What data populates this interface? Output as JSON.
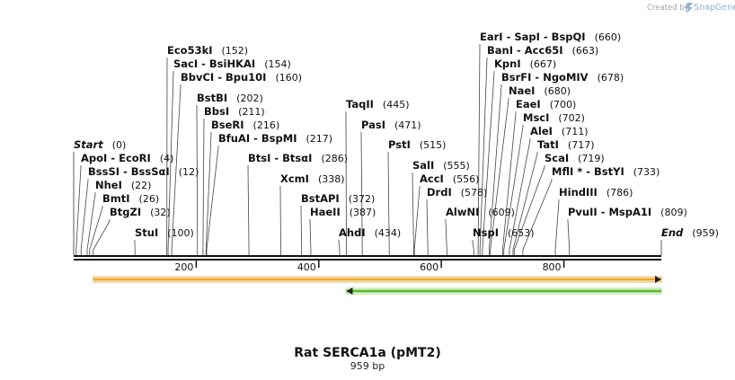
{
  "header": {
    "credit_prefix": "Created by",
    "credit_brand": "SnapGene"
  },
  "map": {
    "title": "Rat SERCA1a (pMT2)",
    "length_label": "959 bp",
    "length_bp": 959,
    "ruler_ticks": [
      {
        "bp": 200,
        "label": "200"
      },
      {
        "bp": 400,
        "label": "400"
      },
      {
        "bp": 600,
        "label": "600"
      },
      {
        "bp": 800,
        "label": "800"
      }
    ],
    "features": [
      {
        "name": "orange-feature",
        "start": 32,
        "end": 959,
        "direction": "forward",
        "color": "#f0a830",
        "border": "#e8c06a"
      },
      {
        "name": "green-feature",
        "start": 445,
        "end": 959,
        "direction": "reverse",
        "color": "#5cb82e",
        "border": "#a8e08a"
      }
    ]
  },
  "sites": [
    {
      "id": "start",
      "label": "Start",
      "pos": "(0)",
      "bp": 0,
      "italic": true
    },
    {
      "id": "apoi",
      "label": "ApoI  - EcoRI",
      "pos": "(4)",
      "bp": 4
    },
    {
      "id": "bsssi",
      "label": "BssSI  - BssSαI",
      "pos": "(12)",
      "bp": 12
    },
    {
      "id": "nhei",
      "label": "NheI",
      "pos": "(22)",
      "bp": 22
    },
    {
      "id": "bmti",
      "label": "BmtI",
      "pos": "(26)",
      "bp": 26
    },
    {
      "id": "btgzi",
      "label": "BtgZI",
      "pos": "(32)",
      "bp": 32
    },
    {
      "id": "stui",
      "label": "StuI",
      "pos": "(100)",
      "bp": 100
    },
    {
      "id": "eco53ki",
      "label": "Eco53kI",
      "pos": "(152)",
      "bp": 152
    },
    {
      "id": "saci",
      "label": "SacI  - BsiHKAI",
      "pos": "(154)",
      "bp": 154
    },
    {
      "id": "bbvci",
      "label": "BbvCI  - Bpu10I",
      "pos": "(160)",
      "bp": 160
    },
    {
      "id": "bstbi",
      "label": "BstBI",
      "pos": "(202)",
      "bp": 202
    },
    {
      "id": "bbsi",
      "label": "BbsI",
      "pos": "(211)",
      "bp": 211
    },
    {
      "id": "bseri",
      "label": "BseRI",
      "pos": "(216)",
      "bp": 216
    },
    {
      "id": "bfuai",
      "label": "BfuAI  - BspMI",
      "pos": "(217)",
      "bp": 217
    },
    {
      "id": "btsi",
      "label": "BtsI  - BtsαI",
      "pos": "(286)",
      "bp": 286
    },
    {
      "id": "xcmi",
      "label": "XcmI",
      "pos": "(338)",
      "bp": 338
    },
    {
      "id": "bstapi",
      "label": "BstAPI",
      "pos": "(372)",
      "bp": 372
    },
    {
      "id": "haeii",
      "label": "HaeII",
      "pos": "(387)",
      "bp": 387
    },
    {
      "id": "ahdi",
      "label": "AhdI",
      "pos": "(434)",
      "bp": 434
    },
    {
      "id": "taqii",
      "label": "TaqII",
      "pos": "(445)",
      "bp": 445
    },
    {
      "id": "pasi",
      "label": "PasI",
      "pos": "(471)",
      "bp": 471
    },
    {
      "id": "psti",
      "label": "PstI",
      "pos": "(515)",
      "bp": 515
    },
    {
      "id": "sali",
      "label": "SalI",
      "pos": "(555)",
      "bp": 555
    },
    {
      "id": "acci",
      "label": "AccI",
      "pos": "(556)",
      "bp": 556
    },
    {
      "id": "drdi",
      "label": "DrdI",
      "pos": "(578)",
      "bp": 578
    },
    {
      "id": "alwni",
      "label": "AlwNI",
      "pos": "(609)",
      "bp": 609
    },
    {
      "id": "nspi",
      "label": "NspI",
      "pos": "(653)",
      "bp": 653
    },
    {
      "id": "eari",
      "label": "EarI  - SapI  - BspQI",
      "pos": "(660)",
      "bp": 660
    },
    {
      "id": "bani",
      "label": "BanI  - Acc65I",
      "pos": "(663)",
      "bp": 663
    },
    {
      "id": "kpni",
      "label": "KpnI",
      "pos": "(667)",
      "bp": 667
    },
    {
      "id": "bsrfi",
      "label": "BsrFI  - NgoMIV",
      "pos": "(678)",
      "bp": 678
    },
    {
      "id": "naei",
      "label": "NaeI",
      "pos": "(680)",
      "bp": 680
    },
    {
      "id": "eaei",
      "label": "EaeI",
      "pos": "(700)",
      "bp": 700
    },
    {
      "id": "msci",
      "label": "MscI",
      "pos": "(702)",
      "bp": 702
    },
    {
      "id": "alei",
      "label": "AleI",
      "pos": "(711)",
      "bp": 711
    },
    {
      "id": "tati",
      "label": "TatI",
      "pos": "(717)",
      "bp": 717
    },
    {
      "id": "scai",
      "label": "ScaI",
      "pos": "(719)",
      "bp": 719
    },
    {
      "id": "mfli",
      "label": "MflI * - BstYI",
      "pos": "(733)",
      "bp": 733
    },
    {
      "id": "hindiii",
      "label": "HindIII",
      "pos": "(786)",
      "bp": 786
    },
    {
      "id": "pvuii",
      "label": "PvuII  - MspA1I",
      "pos": "(809)",
      "bp": 809
    },
    {
      "id": "end",
      "label": "End",
      "pos": "(959)",
      "bp": 959,
      "italic": true
    }
  ]
}
